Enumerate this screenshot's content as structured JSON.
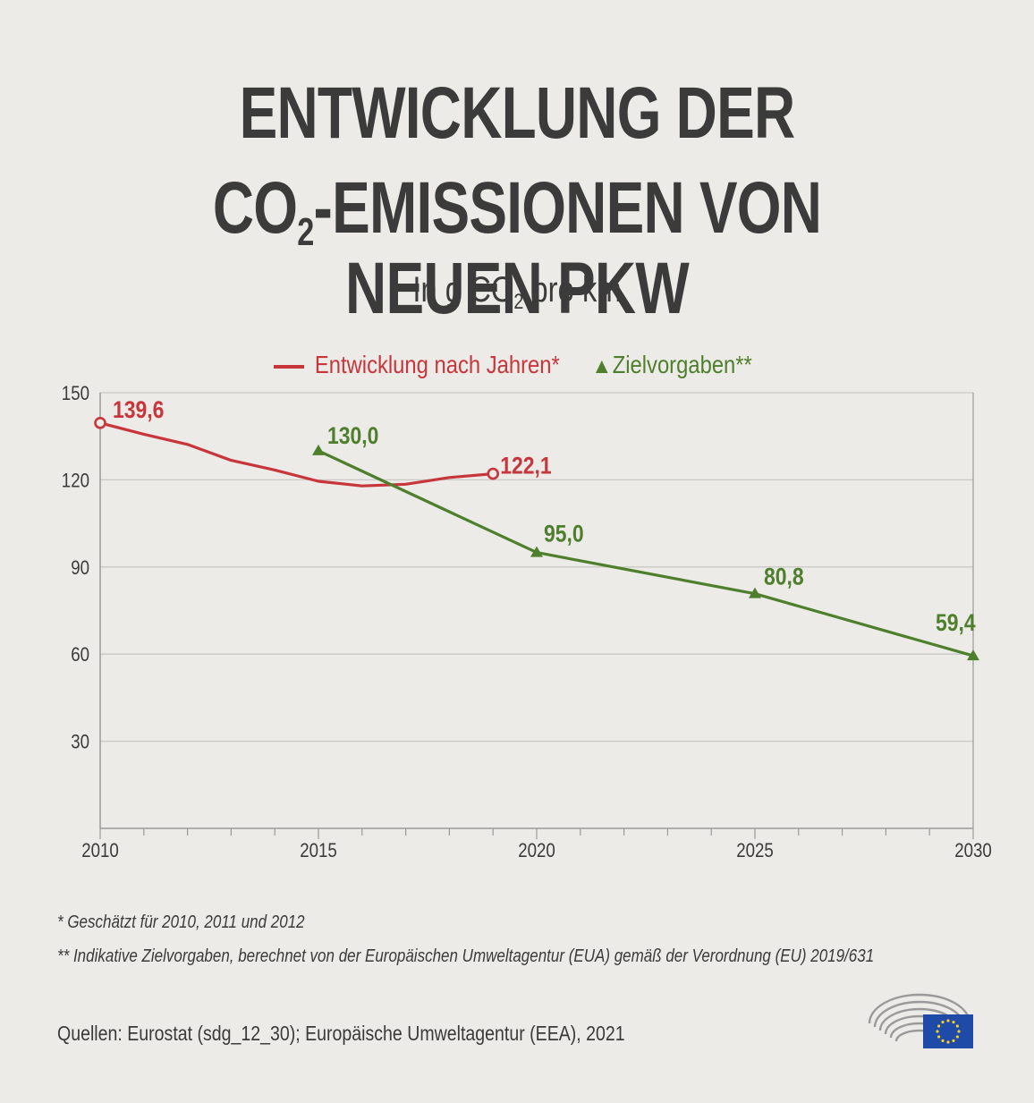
{
  "header": {
    "title_line1": "ENTWICKLUNG DER",
    "title_line2_a": "CO",
    "title_line2_sub": "2",
    "title_line2_b": "-EMISSIONEN VON NEUEN PKW",
    "subtitle_a": "In g CO",
    "subtitle_sub": "2",
    "subtitle_b": " pro km"
  },
  "chart_data": {
    "type": "line",
    "x_ticks": [
      "2010",
      "2015",
      "2020",
      "2025",
      "2030"
    ],
    "y_ticks": [
      "150",
      "120",
      "90",
      "60",
      "30"
    ],
    "xlim": [
      2010,
      2030
    ],
    "ylim": [
      0,
      150
    ],
    "grid": true,
    "legend_position": "top",
    "series": [
      {
        "name": "Entwicklung nach Jahren*",
        "color": "#c8363c",
        "marker": "circle",
        "points": [
          {
            "x": 2010,
            "y": 139.6,
            "label": "139,6"
          },
          {
            "x": 2011,
            "y": 135.7
          },
          {
            "x": 2012,
            "y": 132.2
          },
          {
            "x": 2013,
            "y": 126.7
          },
          {
            "x": 2014,
            "y": 123.4
          },
          {
            "x": 2015,
            "y": 119.5
          },
          {
            "x": 2016,
            "y": 117.9
          },
          {
            "x": 2017,
            "y": 118.5
          },
          {
            "x": 2018,
            "y": 120.8
          },
          {
            "x": 2019,
            "y": 122.1,
            "label": "122,1"
          }
        ]
      },
      {
        "name": "Zielvorgaben**",
        "color": "#4e7f2c",
        "marker": "triangle",
        "points": [
          {
            "x": 2015,
            "y": 130.0,
            "label": "130,0"
          },
          {
            "x": 2020,
            "y": 95.0,
            "label": "95,0"
          },
          {
            "x": 2025,
            "y": 80.8,
            "label": "80,8"
          },
          {
            "x": 2030,
            "y": 59.4,
            "label": "59,4"
          }
        ]
      }
    ]
  },
  "notes": {
    "note1": "* Geschätzt für 2010, 2011 und 2012",
    "note2": "** Indikative Zielvorgaben, berechnet von der Europäischen Umweltagentur (EUA) gemäß der Verordnung (EU) 2019/631",
    "source": "Quellen: Eurostat (sdg_12_30); Europäische Umweltagentur (EEA), 2021"
  },
  "logo": {
    "icon": "european-parliament-logo-icon",
    "flag_color": "#1f4aa8",
    "star_color": "#f2d024"
  }
}
